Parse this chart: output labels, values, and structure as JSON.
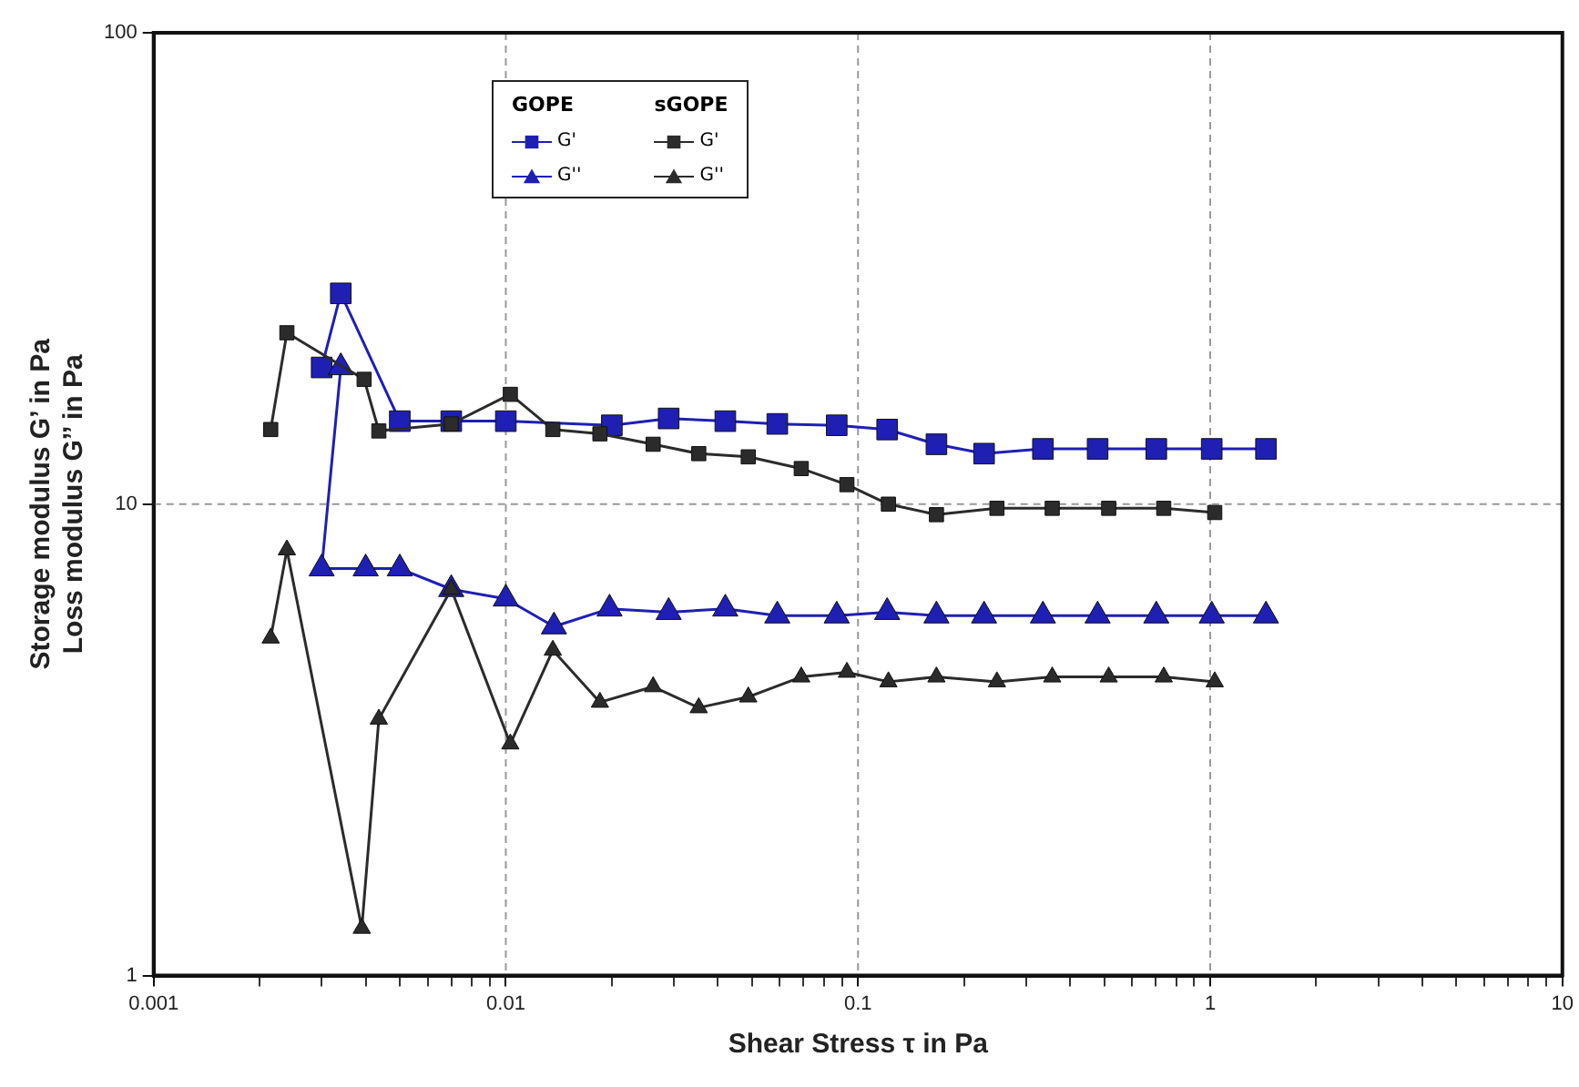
{
  "chart_data": {
    "type": "line",
    "xlabel": "Shear Stress τ in Pa",
    "ylabel": "Storage modulus G’ in Pa\nLoss modulus G’’ in Pa",
    "log": "xy",
    "xlim": [
      0.001,
      10
    ],
    "ylim": [
      1,
      100
    ],
    "xticks": [
      0.001,
      {
        "value": 0.002,
        "label": null
      },
      {
        "value": 0.003,
        "label": null
      },
      {
        "value": 0.004,
        "label": null
      },
      {
        "value": 0.005,
        "label": null
      },
      {
        "value": 0.006,
        "label": null
      },
      {
        "value": 0.007,
        "label": null
      },
      {
        "value": 0.008,
        "label": null
      },
      {
        "value": 0.009,
        "label": null
      },
      0.01,
      {
        "value": 0.02,
        "label": null
      },
      {
        "value": 0.03,
        "label": null
      },
      {
        "value": 0.04,
        "label": null
      },
      {
        "value": 0.05,
        "label": null
      },
      {
        "value": 0.06,
        "label": null
      },
      {
        "value": 0.07,
        "label": null
      },
      {
        "value": 0.08,
        "label": null
      },
      {
        "value": 0.09,
        "label": null
      },
      0.1,
      {
        "value": 0.2,
        "label": null
      },
      {
        "value": 0.3,
        "label": null
      },
      {
        "value": 0.4,
        "label": null
      },
      {
        "value": 0.5,
        "label": null
      },
      {
        "value": 0.6,
        "label": null
      },
      {
        "value": 0.7,
        "label": null
      },
      {
        "value": 0.8,
        "label": null
      },
      {
        "value": 0.9,
        "label": null
      },
      1,
      {
        "value": 2,
        "label": null
      },
      {
        "value": 3,
        "label": null
      },
      {
        "value": 4,
        "label": null
      },
      {
        "value": 5,
        "label": null
      },
      {
        "value": 6,
        "label": null
      },
      {
        "value": 7,
        "label": null
      },
      {
        "value": 8,
        "label": null
      },
      {
        "value": 9,
        "label": null
      },
      10
    ],
    "yticks": [
      1,
      10,
      100
    ],
    "grid": true,
    "legend": "top",
    "annotations": [
      "GOPE",
      "sGOPE"
    ],
    "series": [
      {
        "name": "G'",
        "color": "#1f1fb4",
        "marker": "square",
        "x": [
          0.003,
          0.0034,
          0.005,
          0.007,
          0.01,
          0.02,
          0.029,
          0.042,
          0.059,
          0.087,
          0.121,
          0.167,
          0.228,
          0.335,
          0.479,
          0.703,
          1.01,
          1.44
        ],
        "values": [
          19.5,
          28,
          15,
          15,
          15,
          14.7,
          15.2,
          15,
          14.8,
          14.7,
          14.4,
          13.4,
          12.8,
          13.1,
          13.1,
          13.1,
          13.1,
          13.1
        ]
      },
      {
        "name": "G''",
        "color": "#1f1fb4",
        "marker": "triangle",
        "x": [
          0.0034,
          0.003,
          0.004,
          0.005,
          0.007,
          0.01,
          0.0137,
          0.0197,
          0.029,
          0.042,
          0.059,
          0.087,
          0.121,
          0.167,
          0.228,
          0.335,
          0.479,
          0.703,
          1.01,
          1.44
        ],
        "values": [
          19.5,
          7.3,
          7.3,
          7.3,
          6.6,
          6.3,
          5.5,
          6,
          5.9,
          6,
          5.8,
          5.8,
          5.9,
          5.8,
          5.8,
          5.8,
          5.8,
          5.8,
          5.8,
          5.8
        ]
      },
      {
        "name": "G'",
        "color": "#2b2b2b",
        "marker": "square",
        "x": [
          0.00215,
          0.00239,
          0.00396,
          0.00436,
          0.007,
          0.0103,
          0.0136,
          0.0185,
          0.0262,
          0.0353,
          0.0488,
          0.069,
          0.093,
          0.122,
          0.167,
          0.248,
          0.356,
          0.515,
          0.738,
          1.03
        ],
        "values": [
          14.4,
          23.1,
          18.4,
          14.3,
          14.8,
          17.1,
          14.4,
          14.1,
          13.4,
          12.8,
          12.6,
          11.9,
          11,
          10,
          9.5,
          9.8,
          9.8,
          9.8,
          9.8,
          9.6
        ]
      },
      {
        "name": "G''",
        "color": "#2b2b2b",
        "marker": "triangle",
        "x": [
          0.00215,
          0.00239,
          0.0039,
          0.00436,
          0.007,
          0.0103,
          0.0136,
          0.0185,
          0.0262,
          0.0353,
          0.0488,
          0.069,
          0.093,
          0.122,
          0.167,
          0.248,
          0.356,
          0.515,
          0.738,
          1.03
        ],
        "values": [
          5.2,
          8,
          1.26,
          3.5,
          6.6,
          3.1,
          4.9,
          3.8,
          4.1,
          3.7,
          3.9,
          4.3,
          4.4,
          4.2,
          4.3,
          4.2,
          4.3,
          4.3,
          4.3,
          4.2
        ]
      }
    ]
  }
}
